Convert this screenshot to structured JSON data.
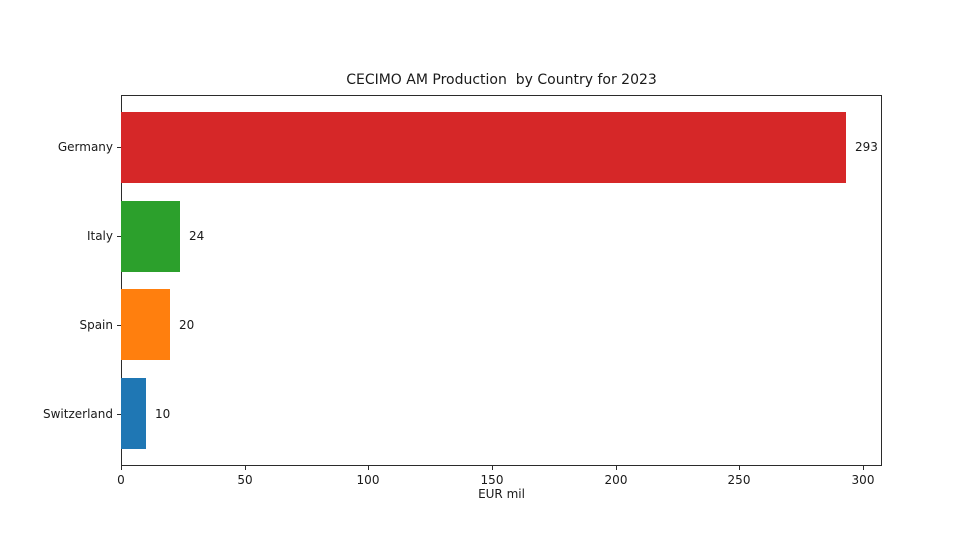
{
  "chart_data": {
    "type": "bar",
    "orientation": "horizontal",
    "title": "CECIMO AM Production  by Country for 2023",
    "xlabel": "EUR mil",
    "ylabel": "",
    "categories": [
      "Germany",
      "Italy",
      "Spain",
      "Switzerland"
    ],
    "values": [
      293,
      24,
      20,
      10
    ],
    "value_labels": [
      "293",
      "24",
      "20",
      "10"
    ],
    "bar_colors": [
      "#d62728",
      "#2ca02c",
      "#ff7f0e",
      "#1f77b4"
    ],
    "xticks": [
      0,
      50,
      100,
      150,
      200,
      250,
      300
    ],
    "xtick_labels": [
      "0",
      "50",
      "100",
      "150",
      "200",
      "250",
      "300"
    ],
    "xlim": [
      0,
      307.65
    ],
    "grid": false,
    "legend": null,
    "spine_color": "#2b2b2b",
    "background_color": "#ffffff"
  }
}
